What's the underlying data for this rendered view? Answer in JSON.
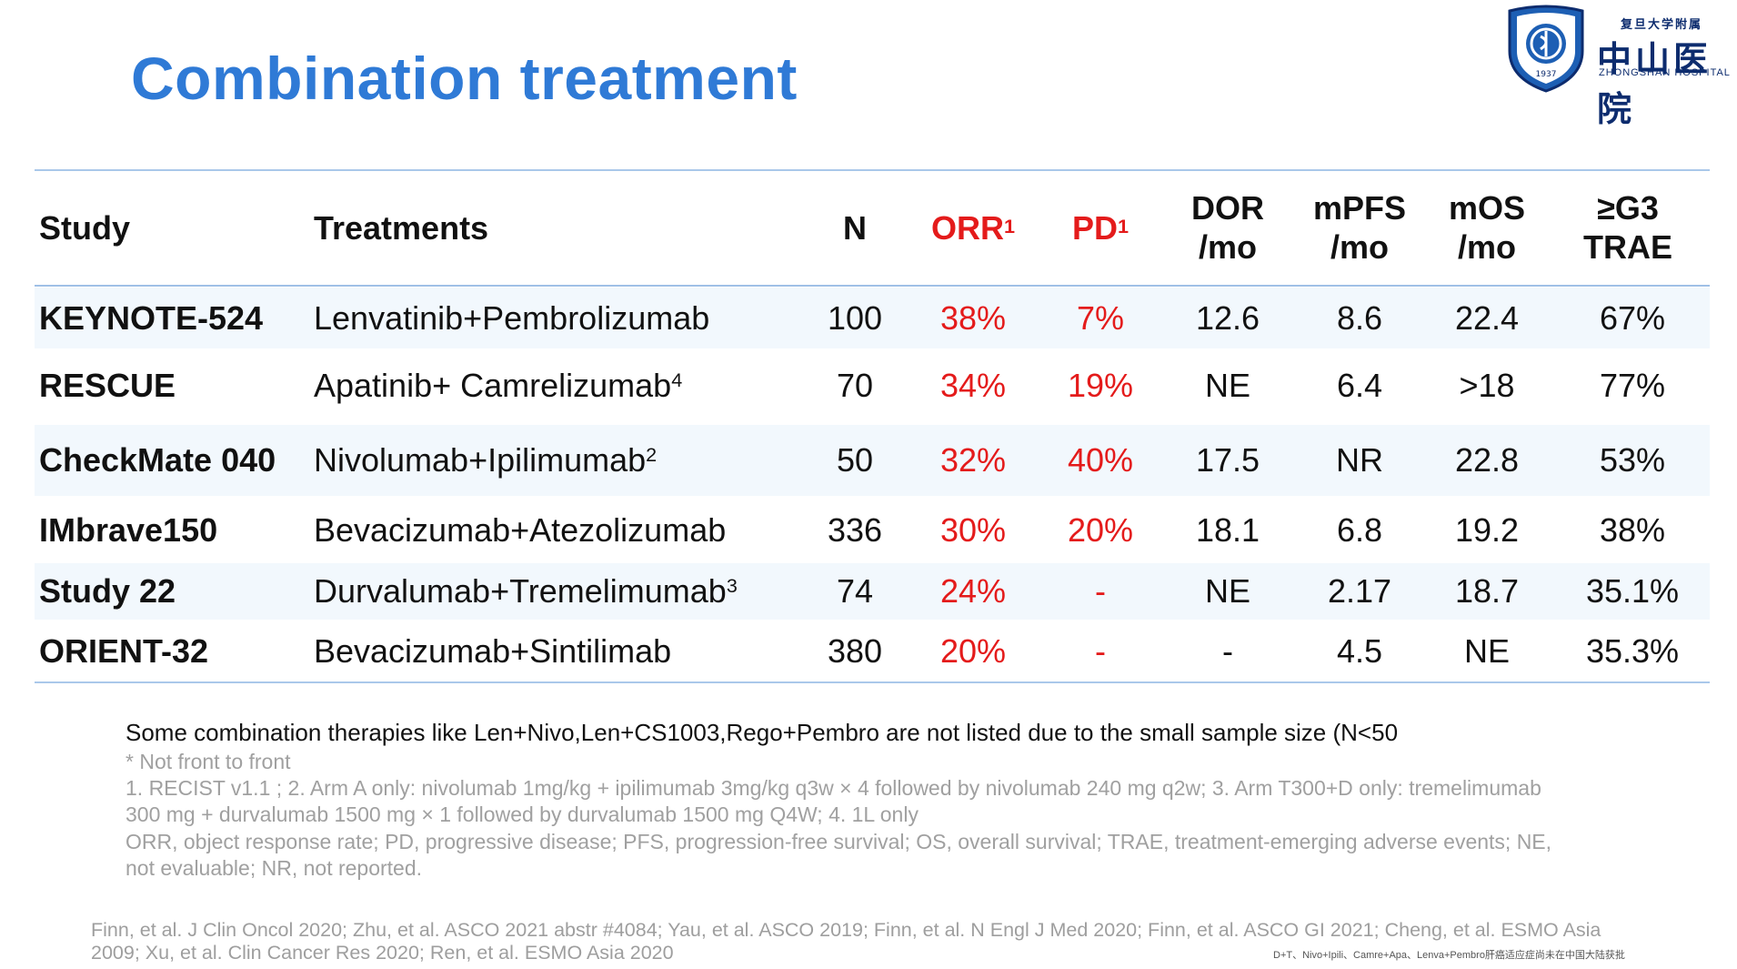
{
  "title": "Combination treatment",
  "logo": {
    "small": "复旦大学附属",
    "main": "中山医院",
    "en": "ZHONGSHAN HOSPITAL",
    "year": "1937"
  },
  "headers": {
    "study": "Study",
    "treatments": "Treatments",
    "n": "N",
    "orr": "ORR",
    "orr_sup": "1",
    "pd": "PD",
    "pd_sup": "1",
    "dor_1": "DOR",
    "dor_2": "/mo",
    "mpfs_1": "mPFS",
    "mpfs_2": "/mo",
    "mos_1": "mOS",
    "mos_2": "/mo",
    "trae_1": "≥G3",
    "trae_2": "TRAE"
  },
  "rows": [
    {
      "study": "KEYNOTE-524",
      "treatment": "Lenvatinib+Pembrolizumab",
      "sup": "",
      "n": "100",
      "orr": "38%",
      "pd": "7%",
      "dor": "12.6",
      "mpfs": "8.6",
      "mos": "22.4",
      "trae": "67%"
    },
    {
      "study": "RESCUE",
      "treatment": "Apatinib+ Camrelizumab",
      "sup": "4",
      "n": "70",
      "orr": "34%",
      "pd": "19%",
      "dor": "NE",
      "mpfs": "6.4",
      "mos": ">18",
      "trae": "77%"
    },
    {
      "study": "CheckMate 040",
      "treatment": "Nivolumab+Ipilimumab",
      "sup": "2",
      "n": "50",
      "orr": "32%",
      "pd": "40%",
      "dor": "17.5",
      "mpfs": "NR",
      "mos": "22.8",
      "trae": "53%"
    },
    {
      "study": "IMbrave150",
      "treatment": "Bevacizumab+Atezolizumab",
      "sup": "",
      "n": "336",
      "orr": "30%",
      "pd": "20%",
      "dor": "18.1",
      "mpfs": "6.8",
      "mos": "19.2",
      "trae": "38%"
    },
    {
      "study": "Study 22",
      "treatment": "Durvalumab+Tremelimumab",
      "sup": "3",
      "n": "74",
      "orr": "24%",
      "pd": "-",
      "dor": "NE",
      "mpfs": "2.17",
      "mos": "18.7",
      "trae": "35.1%"
    },
    {
      "study": "ORIENT-32",
      "treatment": "Bevacizumab+Sintilimab",
      "sup": "",
      "n": "380",
      "orr": "20%",
      "pd": "-",
      "dor": "-",
      "mpfs": "4.5",
      "mos": "NE",
      "trae": "35.3%"
    }
  ],
  "notes": {
    "main": "Some combination therapies like Len+Nivo,Len+CS1003,Rego+Pembro are not listed due to the small sample size (N<50",
    "line1": "* Not front to front",
    "line2": "1. RECIST v1.1 ; 2. Arm A only: nivolumab 1mg/kg + ipilimumab 3mg/kg q3w × 4 followed by nivolumab 240 mg q2w; 3. Arm T300+D only:  tremelimumab",
    "line3": "300 mg + durvalumab 1500 mg × 1 followed by durvalumab 1500 mg Q4W; 4. 1L only",
    "line4": "ORR, object response rate; PD, progressive disease; PFS, progression-free survival; OS, overall survival; TRAE, treatment-emerging adverse events; NE,",
    "line5": "not evaluable; NR, not reported."
  },
  "references": {
    "line1": "Finn, et al. J Clin Oncol 2020; Zhu, et al. ASCO 2021 abstr #4084; Yau, et al. ASCO 2019; Finn, et al. N Engl J Med 2020; Finn, et al. ASCO GI 2021;  Cheng, et al. ESMO Asia",
    "line2": "2009; Xu, et al. Clin Cancer Res 2020; Ren, et al. ESMO Asia 2020",
    "small": "D+T、Nivo+Ipili、Camre+Apa、Lenva+Pembro肝癌适应症尚未在中国大陆获批"
  },
  "colors": {
    "title": "#2f7ad6",
    "highlight_red": "#e41b1b",
    "rule": "#aac8ea",
    "row_shade": "#f2f8fd",
    "logo_navy": "#0d2c6e"
  }
}
